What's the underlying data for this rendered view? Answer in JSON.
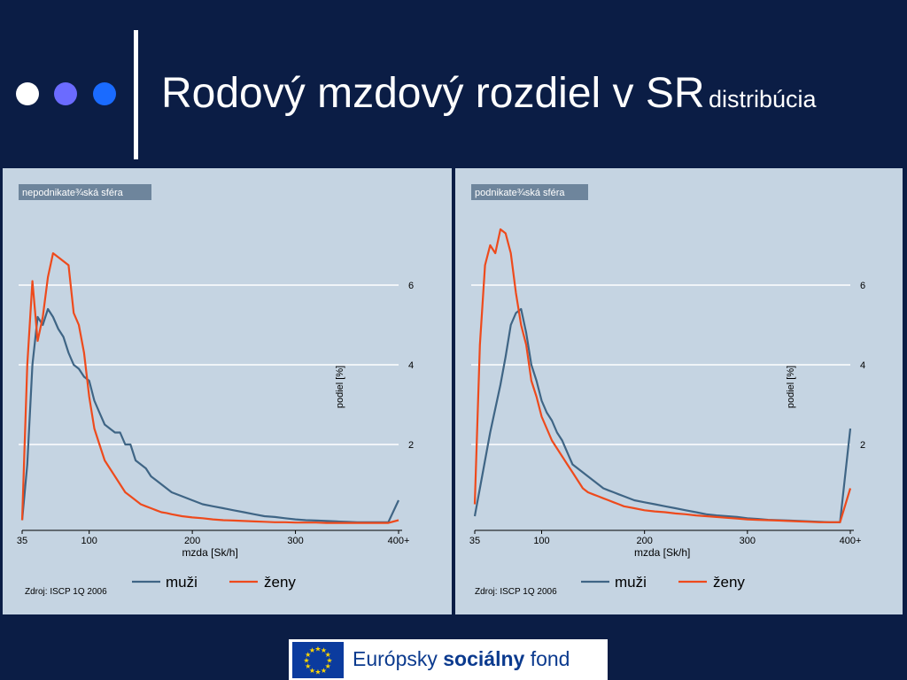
{
  "header": {
    "title": "Rodový mzdový rozdiel v SR",
    "subtitle": "distribúcia",
    "dot_colors": [
      "#ffffff",
      "#6b6bff",
      "#1a6bff"
    ]
  },
  "footer": {
    "logo_text_1": "Európsky",
    "logo_text_2": "sociálny",
    "logo_text_3": "fond",
    "logo": "eu-flag"
  },
  "chart_data": [
    {
      "type": "line",
      "panel_label": "nepodnikate¾ská sféra",
      "xlabel": "mzda [Sk/h]",
      "ylabel": "podiel [%]",
      "source": "Zdroj: ISCP 1Q 2006",
      "x_ticks": [
        35,
        100,
        200,
        300,
        400
      ],
      "x_tick_labels": [
        "35",
        "100",
        "200",
        "300",
        "400+"
      ],
      "y_ticks": [
        2,
        4,
        6
      ],
      "xlim": [
        35,
        400
      ],
      "ylim": [
        0,
        6
      ],
      "grid": true,
      "legend": "bottom",
      "series": [
        {
          "name": "muži",
          "color": "#3f6585",
          "x": [
            35,
            40,
            45,
            50,
            55,
            60,
            65,
            70,
            75,
            80,
            85,
            90,
            95,
            100,
            105,
            110,
            115,
            120,
            125,
            130,
            135,
            140,
            145,
            150,
            155,
            160,
            165,
            170,
            175,
            180,
            190,
            200,
            210,
            220,
            230,
            240,
            250,
            260,
            270,
            280,
            290,
            300,
            310,
            320,
            330,
            340,
            350,
            360,
            370,
            380,
            390,
            400
          ],
          "y": [
            0.1,
            1.5,
            4.0,
            5.2,
            5.0,
            5.4,
            5.2,
            4.9,
            4.7,
            4.3,
            4.0,
            3.9,
            3.7,
            3.6,
            3.1,
            2.8,
            2.5,
            2.4,
            2.3,
            2.3,
            2.0,
            2.0,
            1.6,
            1.5,
            1.4,
            1.2,
            1.1,
            1.0,
            0.9,
            0.8,
            0.7,
            0.6,
            0.5,
            0.45,
            0.4,
            0.35,
            0.3,
            0.25,
            0.2,
            0.18,
            0.15,
            0.12,
            0.1,
            0.09,
            0.08,
            0.07,
            0.06,
            0.05,
            0.05,
            0.05,
            0.05,
            0.6
          ]
        },
        {
          "name": "ženy",
          "color": "#ee4a1c",
          "x": [
            35,
            40,
            45,
            50,
            55,
            60,
            65,
            70,
            75,
            80,
            85,
            90,
            95,
            100,
            105,
            110,
            115,
            120,
            125,
            130,
            135,
            140,
            145,
            150,
            155,
            160,
            165,
            170,
            175,
            180,
            190,
            200,
            210,
            220,
            230,
            240,
            250,
            260,
            270,
            280,
            290,
            300,
            310,
            320,
            330,
            340,
            350,
            360,
            370,
            380,
            390,
            400
          ],
          "y": [
            0.1,
            4.0,
            6.1,
            4.6,
            5.2,
            6.2,
            6.8,
            6.7,
            6.6,
            6.5,
            5.3,
            5.0,
            4.3,
            3.2,
            2.4,
            2.0,
            1.6,
            1.4,
            1.2,
            1.0,
            0.8,
            0.7,
            0.6,
            0.5,
            0.45,
            0.4,
            0.35,
            0.3,
            0.28,
            0.25,
            0.2,
            0.17,
            0.15,
            0.12,
            0.1,
            0.09,
            0.08,
            0.07,
            0.06,
            0.05,
            0.05,
            0.04,
            0.04,
            0.04,
            0.03,
            0.03,
            0.03,
            0.03,
            0.03,
            0.03,
            0.03,
            0.1
          ]
        }
      ]
    },
    {
      "type": "line",
      "panel_label": "podnikate¾ská sféra",
      "xlabel": "mzda [Sk/h]",
      "ylabel": "podiel [%]",
      "source": "Zdroj: ISCP 1Q 2006",
      "x_ticks": [
        35,
        100,
        200,
        300,
        400
      ],
      "x_tick_labels": [
        "35",
        "100",
        "200",
        "300",
        "400+"
      ],
      "y_ticks": [
        2,
        4,
        6
      ],
      "xlim": [
        35,
        400
      ],
      "ylim": [
        0,
        6
      ],
      "grid": true,
      "legend": "bottom",
      "series": [
        {
          "name": "muži",
          "color": "#3f6585",
          "x": [
            35,
            40,
            45,
            50,
            55,
            60,
            65,
            70,
            75,
            80,
            85,
            90,
            95,
            100,
            105,
            110,
            115,
            120,
            125,
            130,
            135,
            140,
            145,
            150,
            155,
            160,
            165,
            170,
            175,
            180,
            190,
            200,
            210,
            220,
            230,
            240,
            250,
            260,
            270,
            280,
            290,
            300,
            310,
            320,
            330,
            340,
            350,
            360,
            370,
            380,
            390,
            400
          ],
          "y": [
            0.2,
            0.9,
            1.6,
            2.3,
            2.9,
            3.5,
            4.2,
            5.0,
            5.3,
            5.4,
            4.8,
            4.0,
            3.6,
            3.1,
            2.8,
            2.6,
            2.3,
            2.1,
            1.8,
            1.5,
            1.4,
            1.3,
            1.2,
            1.1,
            1.0,
            0.9,
            0.85,
            0.8,
            0.75,
            0.7,
            0.6,
            0.55,
            0.5,
            0.45,
            0.4,
            0.35,
            0.3,
            0.25,
            0.22,
            0.2,
            0.18,
            0.15,
            0.13,
            0.11,
            0.1,
            0.09,
            0.08,
            0.07,
            0.06,
            0.05,
            0.05,
            2.4
          ]
        },
        {
          "name": "ženy",
          "color": "#ee4a1c",
          "x": [
            35,
            40,
            45,
            50,
            55,
            60,
            65,
            70,
            75,
            80,
            85,
            90,
            95,
            100,
            105,
            110,
            115,
            120,
            125,
            130,
            135,
            140,
            145,
            150,
            155,
            160,
            165,
            170,
            175,
            180,
            190,
            200,
            210,
            220,
            230,
            240,
            250,
            260,
            270,
            280,
            290,
            300,
            310,
            320,
            330,
            340,
            350,
            360,
            370,
            380,
            390,
            400
          ],
          "y": [
            0.5,
            4.5,
            6.5,
            7.0,
            6.8,
            7.4,
            7.3,
            6.8,
            5.8,
            5.0,
            4.5,
            3.6,
            3.2,
            2.7,
            2.4,
            2.1,
            1.9,
            1.7,
            1.5,
            1.3,
            1.1,
            0.9,
            0.8,
            0.75,
            0.7,
            0.65,
            0.6,
            0.55,
            0.5,
            0.45,
            0.4,
            0.35,
            0.32,
            0.3,
            0.27,
            0.25,
            0.22,
            0.2,
            0.18,
            0.16,
            0.14,
            0.12,
            0.11,
            0.1,
            0.09,
            0.08,
            0.07,
            0.06,
            0.05,
            0.05,
            0.05,
            0.9
          ]
        }
      ]
    }
  ]
}
